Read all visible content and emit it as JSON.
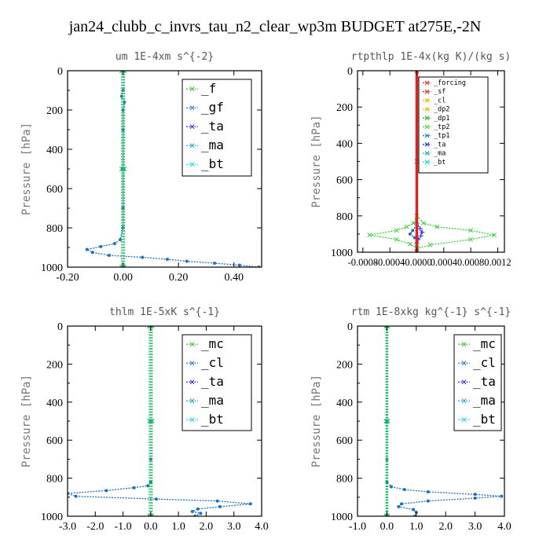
{
  "figure": {
    "title": "jan24_clubb_c_invrs_tau_n2_clear_wp3m  BUDGET at275E,-2N"
  },
  "chart_data": [
    {
      "type": "line",
      "id": "um",
      "title": "um   1E-4xm s^{-2}",
      "ylabel": "Pressure [hPa]",
      "xlim": [
        -0.2,
        0.5
      ],
      "ylim": [
        1000,
        0
      ],
      "xticks": [
        "-0.20",
        "0.00",
        "0.20",
        "0.40"
      ],
      "yticks": [
        "0",
        "200",
        "400",
        "600",
        "800",
        "1000"
      ],
      "legend_position": "top-right",
      "legend": [
        {
          "label": "_f",
          "color": "#27c427"
        },
        {
          "label": "_gf",
          "color": "#1f6fbf"
        },
        {
          "label": "_ta",
          "color": "#2222dd"
        },
        {
          "label": "_ma",
          "color": "#0aa6c8"
        },
        {
          "label": "_bt",
          "color": "#11d6e0"
        }
      ],
      "series": [
        {
          "color": "#1f6fbf",
          "marker": "dot",
          "points": [
            [
              0,
              0
            ],
            [
              0,
              100
            ],
            [
              -0.005,
              130
            ],
            [
              0.005,
              160
            ],
            [
              0,
              200
            ],
            [
              0,
              300
            ],
            [
              0,
              500
            ],
            [
              0,
              700
            ],
            [
              0,
              800
            ],
            [
              -0.01,
              860
            ],
            [
              -0.03,
              880
            ],
            [
              -0.08,
              895
            ],
            [
              -0.13,
              910
            ],
            [
              -0.11,
              925
            ],
            [
              -0.05,
              940
            ],
            [
              0.07,
              950
            ],
            [
              0.16,
              960
            ],
            [
              0.23,
              970
            ],
            [
              0.33,
              980
            ],
            [
              0.42,
              990
            ],
            [
              0.49,
              1000
            ]
          ]
        },
        {
          "color": "#27c427",
          "marker": "x",
          "points": [
            [
              -0.005,
              0
            ],
            [
              -0.005,
              500
            ],
            [
              -0.005,
              1000
            ]
          ]
        },
        {
          "color": "#27c427",
          "marker": "x",
          "points": [
            [
              0.005,
              0
            ],
            [
              0.005,
              500
            ],
            [
              0.005,
              1000
            ]
          ]
        },
        {
          "color": "#0aa6c8",
          "marker": "x",
          "points": [
            [
              0,
              0
            ],
            [
              0,
              500
            ],
            [
              0,
              1000
            ]
          ]
        }
      ]
    },
    {
      "type": "line",
      "id": "rtpthlp",
      "title": "rtpthlp   1E-4x(kg K)/(kg s)",
      "ylabel": "Pressure [hPa]",
      "xlim": [
        -0.00088,
        0.0013
      ],
      "ylim": [
        1000,
        0
      ],
      "xticks": [
        "-0.0008",
        "-0.0004",
        "-0.0000",
        "0.0004",
        "0.0008",
        "0.0012"
      ],
      "xtick_values": [
        -0.0008,
        -0.0004,
        0.0,
        0.0004,
        0.0008,
        0.0012
      ],
      "yticks": [
        "0",
        "200",
        "400",
        "600",
        "800",
        "1000"
      ],
      "legend_position": "top-right",
      "legend": [
        {
          "label": "_forcing",
          "color": "#dd2222"
        },
        {
          "label": "_sf",
          "color": "#dd2222"
        },
        {
          "label": "_cl",
          "color": "#e0b000"
        },
        {
          "label": "_dp2",
          "color": "#e0b000"
        },
        {
          "label": "_dp1",
          "color": "#2aa52a"
        },
        {
          "label": "_tp2",
          "color": "#3fd03f"
        },
        {
          "label": "_tp1",
          "color": "#1f6fbf"
        },
        {
          "label": "_ta",
          "color": "#2222dd"
        },
        {
          "label": "_ma",
          "color": "#0aa6c8"
        },
        {
          "label": "_bt",
          "color": "#11d6e0"
        }
      ],
      "series": [
        {
          "color": "#3fd03f",
          "marker": "x",
          "points": [
            [
              0,
              0
            ],
            [
              0,
              800
            ],
            [
              -5e-05,
              840
            ],
            [
              -0.00015,
              860
            ],
            [
              -0.0003,
              880
            ],
            [
              -0.0007,
              905
            ],
            [
              -0.0003,
              930
            ],
            [
              -0.0001,
              955
            ],
            [
              0,
              975
            ],
            [
              0,
              1000
            ]
          ]
        },
        {
          "color": "#3fd03f",
          "marker": "x",
          "points": [
            [
              0,
              800
            ],
            [
              0.0001,
              840
            ],
            [
              0.0003,
              860
            ],
            [
              0.0008,
              880
            ],
            [
              0.00115,
              905
            ],
            [
              0.0008,
              930
            ],
            [
              0.0002,
              960
            ],
            [
              0,
              980
            ],
            [
              0,
              1000
            ]
          ]
        },
        {
          "color": "#2222dd",
          "marker": "plus",
          "points": [
            [
              0,
              840
            ],
            [
              5e-05,
              870
            ],
            [
              8e-05,
              890
            ],
            [
              6e-05,
              910
            ],
            [
              2e-05,
              930
            ],
            [
              0,
              950
            ]
          ]
        },
        {
          "color": "#1f6fbf",
          "marker": "dot",
          "points": [
            [
              0,
              850
            ],
            [
              -6e-05,
              880
            ],
            [
              -0.0001,
              900
            ],
            [
              -3e-05,
              920
            ],
            [
              0,
              940
            ]
          ]
        },
        {
          "color": "#dd2222",
          "marker": "x",
          "width": 3.5,
          "points": [
            [
              0,
              0
            ],
            [
              0,
              500
            ],
            [
              0,
              1000
            ]
          ]
        }
      ]
    },
    {
      "type": "line",
      "id": "thlm",
      "title": "thlm   1E-5xK s^{-1}",
      "ylabel": "Pressure [hPa]",
      "xlim": [
        -3.0,
        4.0
      ],
      "ylim": [
        1000,
        0
      ],
      "xticks": [
        "-3.0",
        "-2.0",
        "-1.0",
        "0.0",
        "1.0",
        "2.0",
        "3.0",
        "4.0"
      ],
      "yticks": [
        "0",
        "200",
        "400",
        "600",
        "800",
        "1000"
      ],
      "legend_position": "top-right",
      "legend": [
        {
          "label": "_mc",
          "color": "#27c427"
        },
        {
          "label": "_cl",
          "color": "#1f6fbf"
        },
        {
          "label": "_ta",
          "color": "#2222dd"
        },
        {
          "label": "_ma",
          "color": "#0aa6c8"
        },
        {
          "label": "_bt",
          "color": "#11d6e0"
        }
      ],
      "series": [
        {
          "color": "#1f6fbf",
          "marker": "dot",
          "points": [
            [
              0,
              0
            ],
            [
              0,
              700
            ],
            [
              0,
              820
            ],
            [
              -0.1,
              840
            ],
            [
              -0.6,
              850
            ],
            [
              -1.6,
              865
            ],
            [
              -3.0,
              880
            ],
            [
              -2.7,
              895
            ],
            [
              0.2,
              910
            ],
            [
              2.4,
              920
            ],
            [
              3.6,
              935
            ],
            [
              2.5,
              950
            ],
            [
              1.7,
              962
            ],
            [
              1.5,
              975
            ],
            [
              1.8,
              985
            ],
            [
              1.6,
              1000
            ]
          ]
        },
        {
          "color": "#27c427",
          "marker": "x",
          "points": [
            [
              -0.05,
              0
            ],
            [
              -0.05,
              500
            ],
            [
              -0.05,
              1000
            ]
          ]
        },
        {
          "color": "#27c427",
          "marker": "x",
          "points": [
            [
              0.05,
              0
            ],
            [
              0.05,
              500
            ],
            [
              0.05,
              1000
            ]
          ]
        },
        {
          "color": "#0aa6c8",
          "marker": "x",
          "points": [
            [
              0,
              0
            ],
            [
              0,
              500
            ],
            [
              0,
              1000
            ]
          ]
        }
      ]
    },
    {
      "type": "line",
      "id": "rtm",
      "title": "rtm   1E-8xkg kg^{-1} s^{-1}",
      "ylabel": "Pressure [hPa]",
      "xlim": [
        -1.0,
        4.0
      ],
      "ylim": [
        1000,
        0
      ],
      "xticks": [
        "-1.0",
        "0.0",
        "1.0",
        "2.0",
        "3.0",
        "4.0"
      ],
      "yticks": [
        "0",
        "200",
        "400",
        "600",
        "800",
        "1000"
      ],
      "legend_position": "top-right",
      "legend": [
        {
          "label": "_mc",
          "color": "#27c427"
        },
        {
          "label": "_cl",
          "color": "#1f6fbf"
        },
        {
          "label": "_ta",
          "color": "#2222dd"
        },
        {
          "label": "_ma",
          "color": "#0aa6c8"
        },
        {
          "label": "_bt",
          "color": "#11d6e0"
        }
      ],
      "series": [
        {
          "color": "#1f6fbf",
          "marker": "dot",
          "points": [
            [
              0,
              0
            ],
            [
              0,
              700
            ],
            [
              0,
              820
            ],
            [
              0.15,
              845
            ],
            [
              0.6,
              860
            ],
            [
              1.4,
              872
            ],
            [
              3.0,
              885
            ],
            [
              3.9,
              895
            ],
            [
              3.0,
              905
            ],
            [
              1.4,
              920
            ],
            [
              0.5,
              935
            ],
            [
              0.4,
              950
            ],
            [
              0.9,
              965
            ],
            [
              1.0,
              980
            ],
            [
              0.95,
              1000
            ]
          ]
        },
        {
          "color": "#27c427",
          "marker": "x",
          "points": [
            [
              -0.03,
              0
            ],
            [
              -0.03,
              500
            ],
            [
              -0.03,
              1000
            ]
          ]
        },
        {
          "color": "#27c427",
          "marker": "x",
          "points": [
            [
              0.03,
              0
            ],
            [
              0.03,
              500
            ],
            [
              0.03,
              1000
            ]
          ]
        },
        {
          "color": "#0aa6c8",
          "marker": "x",
          "points": [
            [
              0,
              0
            ],
            [
              0,
              500
            ],
            [
              0,
              1000
            ]
          ]
        }
      ]
    }
  ]
}
